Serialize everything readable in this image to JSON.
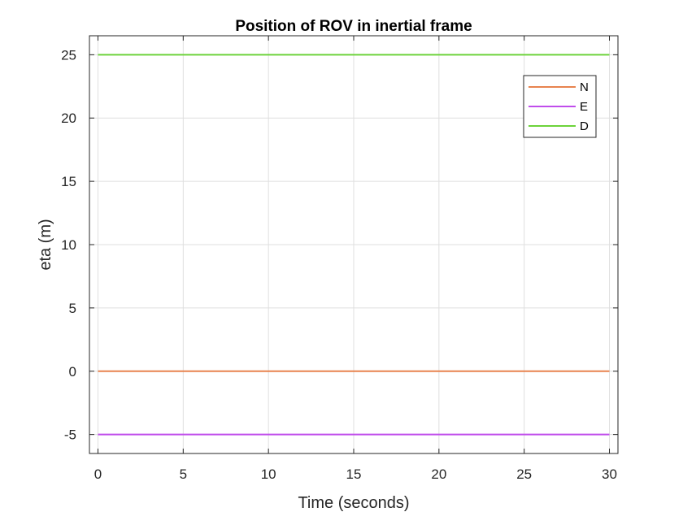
{
  "chart_data": {
    "type": "line",
    "title": "Position of ROV in inertial frame",
    "xlabel": "Time (seconds)",
    "ylabel": "eta (m)",
    "xlim": [
      -0.5,
      30.5
    ],
    "ylim": [
      -6.5,
      26.5
    ],
    "x_ticks": [
      0,
      5,
      10,
      15,
      20,
      25,
      30
    ],
    "y_ticks": [
      -5,
      0,
      5,
      10,
      15,
      20,
      25
    ],
    "grid": true,
    "legend_position": "top-right",
    "series": [
      {
        "name": "N",
        "color": "#E8834F",
        "x": [
          0,
          30
        ],
        "y": [
          0,
          0
        ]
      },
      {
        "name": "E",
        "color": "#C04DEB",
        "x": [
          0,
          30
        ],
        "y": [
          -5,
          -5
        ]
      },
      {
        "name": "D",
        "color": "#6CD33A",
        "x": [
          0,
          30
        ],
        "y": [
          25,
          25
        ]
      }
    ]
  }
}
